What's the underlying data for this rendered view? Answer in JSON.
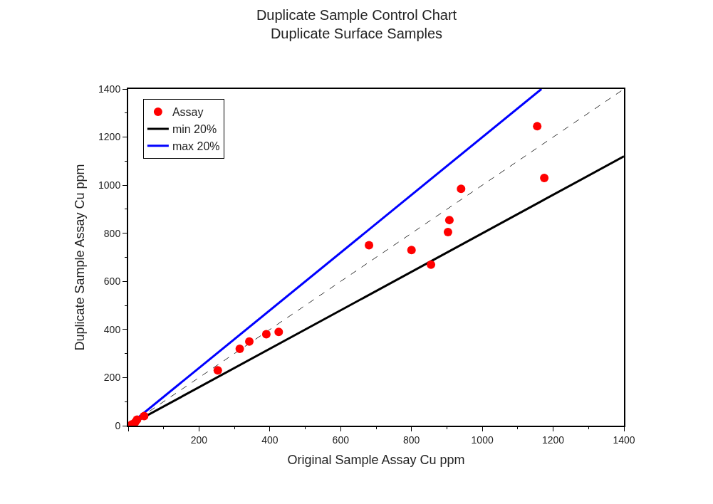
{
  "chart_data": {
    "type": "scatter",
    "title": "Duplicate Sample Control Chart",
    "subtitle": "Duplicate Surface Samples",
    "xlabel": "Original Sample Assay Cu ppm",
    "ylabel": "Duplicate Sample Assay Cu ppm",
    "series": [
      {
        "name": "Assay",
        "color": "#ff0000",
        "marker": "circle",
        "x": [
          10,
          20,
          25,
          45,
          253,
          315,
          342,
          390,
          425,
          680,
          800,
          855,
          903,
          907,
          940,
          1155,
          1175
        ],
        "values": [
          5,
          15,
          25,
          40,
          230,
          320,
          350,
          380,
          390,
          750,
          730,
          670,
          805,
          855,
          985,
          1245,
          1030
        ]
      },
      {
        "name": "min 20%",
        "type": "line",
        "color": "#000000",
        "marker": "none",
        "line_style": "solid",
        "x": [
          0,
          1400
        ],
        "values": [
          0,
          1120
        ]
      },
      {
        "name": "max 20%",
        "type": "line",
        "color": "#0000ff",
        "marker": "none",
        "line_style": "solid",
        "x": [
          0,
          1167
        ],
        "values": [
          0,
          1400
        ]
      },
      {
        "type": "line",
        "color": "#333333",
        "marker": "none",
        "line_style": "dashed",
        "x": [
          0,
          1400
        ],
        "values": [
          0,
          1400
        ]
      }
    ],
    "xlim": [
      0,
      1400
    ],
    "ylim": [
      0,
      1400
    ],
    "xticks": [
      {
        "value": 0,
        "label": null
      },
      200,
      400,
      600,
      800,
      1000,
      1200,
      1400
    ],
    "yticks": [
      0,
      200,
      400,
      600,
      800,
      1000,
      1200,
      1400
    ],
    "grid": false,
    "legend": "top left"
  }
}
